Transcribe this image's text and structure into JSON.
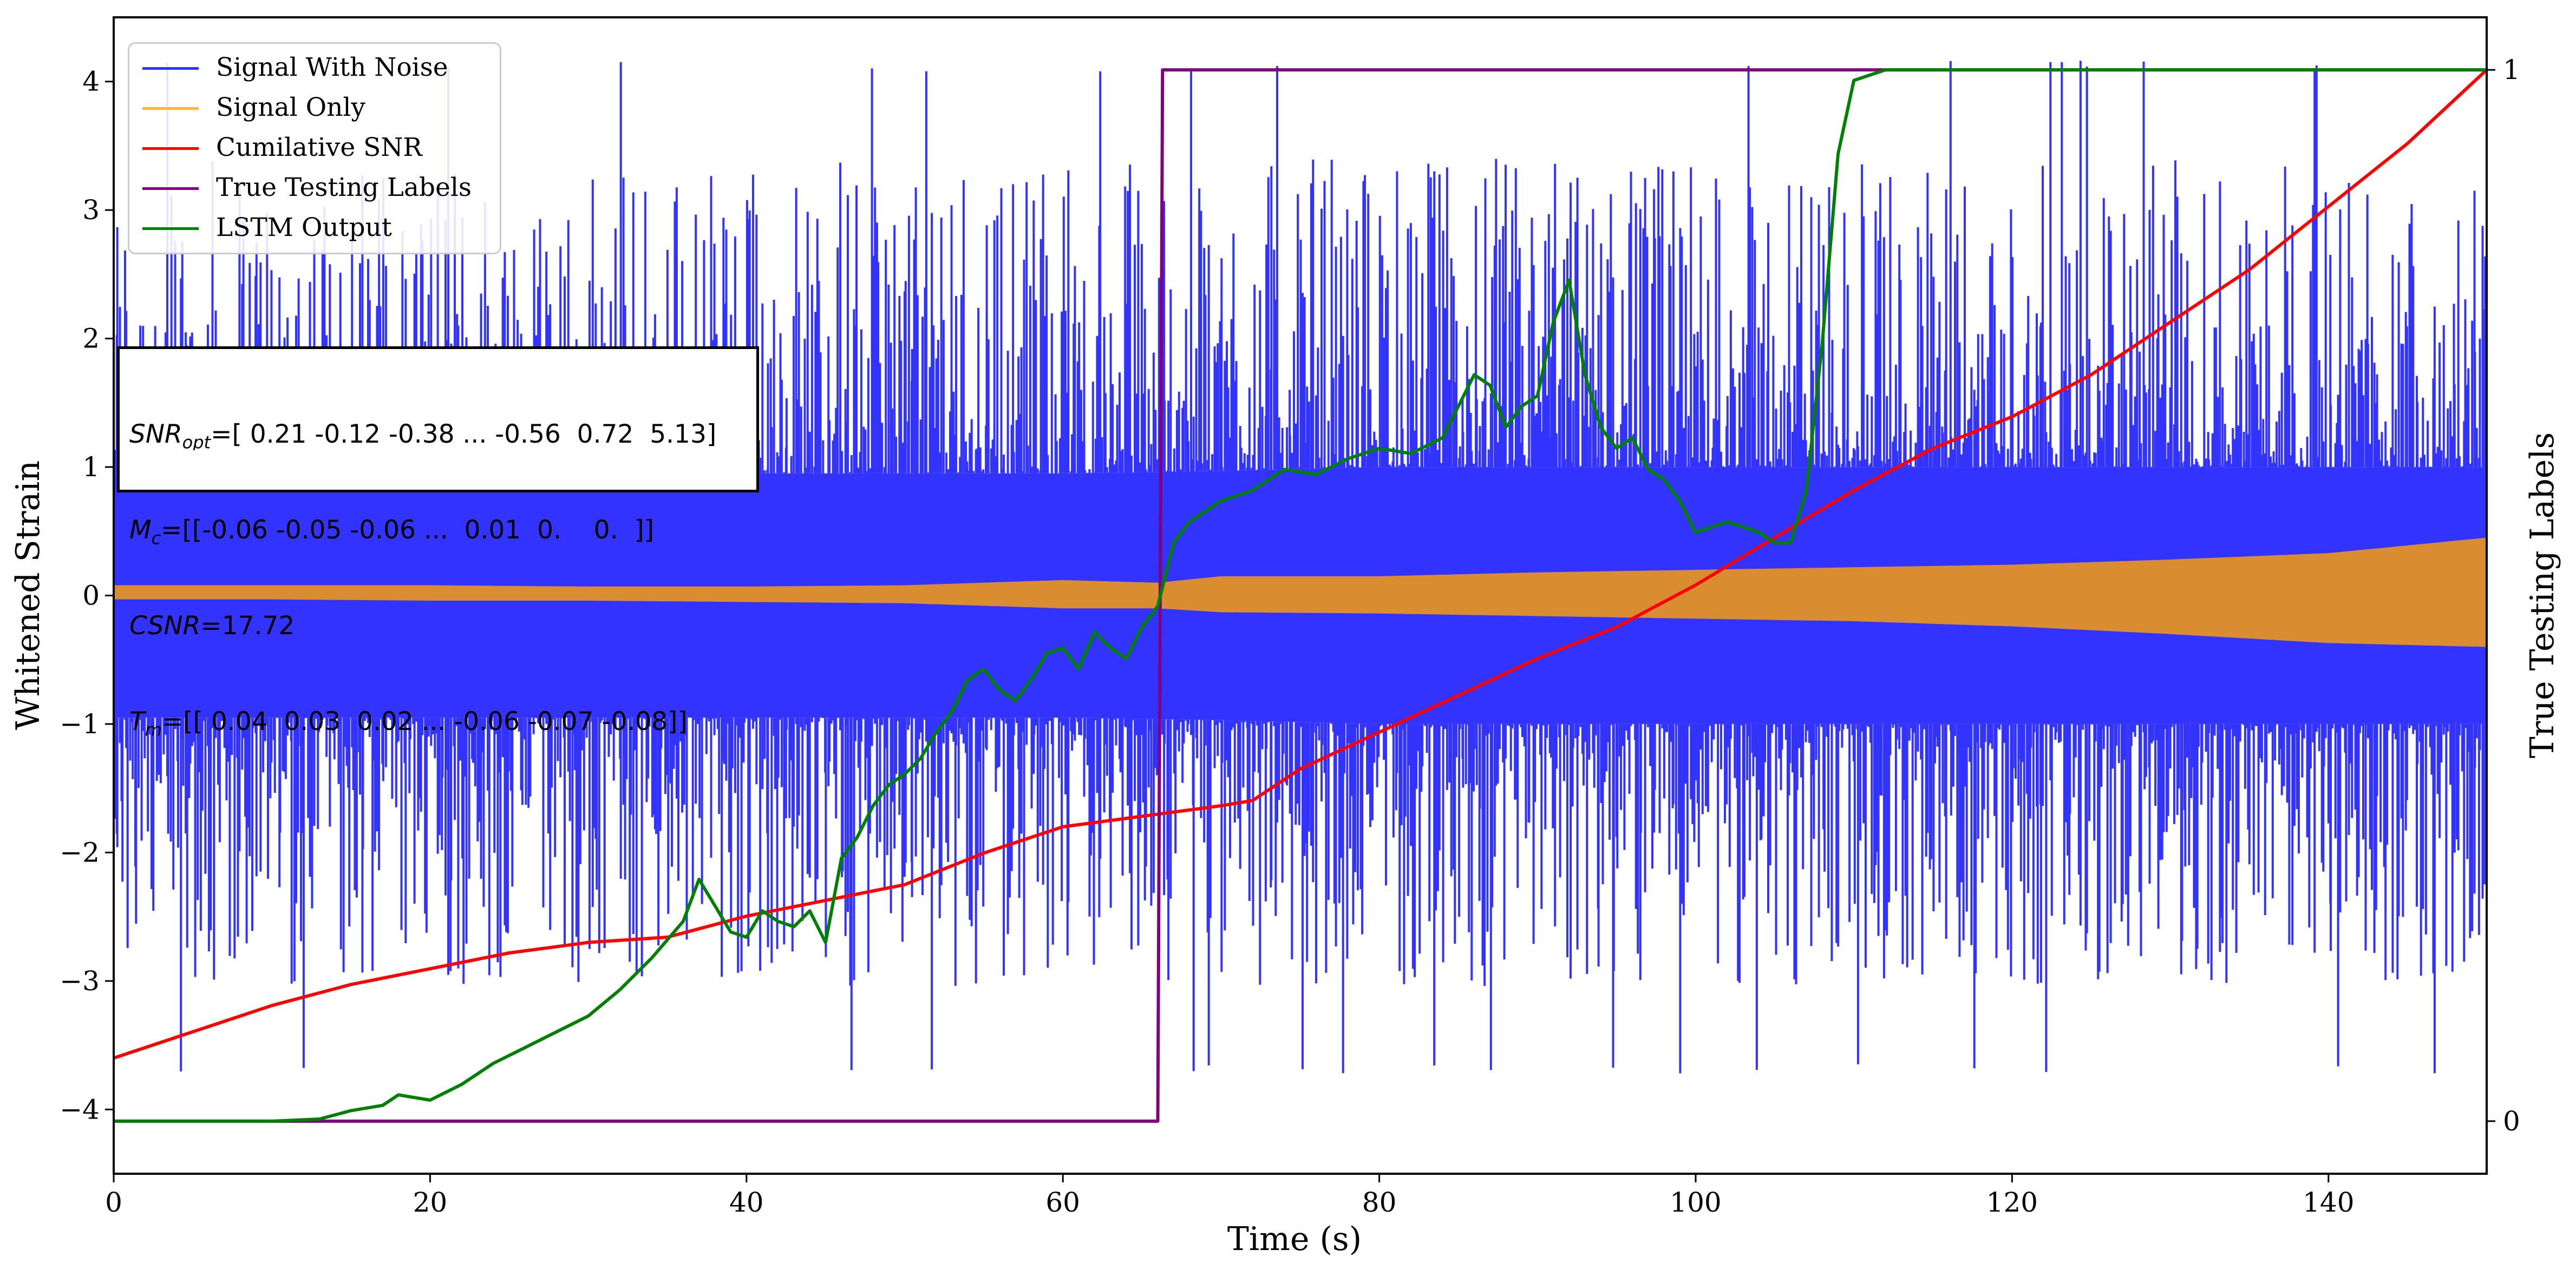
{
  "chart_data": {
    "type": "line",
    "xlabel": "Time (s)",
    "ylabel": "Whitened Strain",
    "y2label": "True Testing Labels",
    "xlim": [
      0,
      150
    ],
    "ylim": [
      -4.5,
      4.5
    ],
    "y2lim": [
      -0.05,
      1.05
    ],
    "xticks": [
      "0",
      "20",
      "40",
      "60",
      "80",
      "100",
      "120",
      "140"
    ],
    "yticks": [
      "4",
      "3",
      "2",
      "1",
      "0",
      "−1",
      "−2",
      "−3",
      "−4"
    ],
    "y2ticks": [
      "1",
      "0"
    ],
    "legend_position": "top-left",
    "colors": {
      "signal_with_noise": "#3333ff",
      "signal_only": "#d98c30",
      "cumulative_snr": "#ff0000",
      "true_labels": "#800080",
      "lstm_output": "#008000"
    },
    "series": [
      {
        "name": "Signal With Noise",
        "type": "noise_band",
        "envelope_x": [
          0,
          10,
          20,
          30,
          40,
          50,
          60,
          70,
          80,
          90,
          100,
          110,
          120,
          130,
          140,
          150
        ],
        "upper": [
          0.95,
          0.95,
          0.95,
          0.95,
          0.95,
          0.95,
          0.95,
          0.97,
          1.0,
          1.0,
          1.0,
          1.0,
          1.0,
          1.0,
          1.0,
          1.0
        ],
        "lower": [
          -0.95,
          -0.95,
          -0.95,
          -0.95,
          -0.95,
          -0.95,
          -0.95,
          -0.97,
          -1.0,
          -1.0,
          -1.0,
          -1.0,
          -1.0,
          -1.0,
          -1.0,
          -1.0
        ],
        "spike_max": 4.18,
        "spike_min": -3.72
      },
      {
        "name": "Signal Only",
        "type": "signal_band",
        "x": [
          0,
          10,
          20,
          30,
          40,
          50,
          60,
          66,
          70,
          80,
          90,
          100,
          110,
          120,
          130,
          140,
          150
        ],
        "upper": [
          0.08,
          0.08,
          0.08,
          0.07,
          0.07,
          0.08,
          0.12,
          0.1,
          0.15,
          0.15,
          0.18,
          0.2,
          0.22,
          0.24,
          0.28,
          0.33,
          0.45
        ],
        "lower": [
          -0.03,
          -0.03,
          -0.04,
          -0.04,
          -0.05,
          -0.06,
          -0.1,
          -0.1,
          -0.13,
          -0.14,
          -0.16,
          -0.18,
          -0.2,
          -0.24,
          -0.3,
          -0.37,
          -0.4
        ]
      },
      {
        "name": "Cumilative SNR",
        "axis": "y2",
        "x": [
          0,
          5,
          10,
          15,
          20,
          25,
          30,
          35,
          40,
          45,
          50,
          55,
          60,
          65,
          70,
          72,
          75,
          80,
          85,
          90,
          95,
          100,
          105,
          110,
          115,
          120,
          125,
          130,
          135,
          140,
          145,
          150
        ],
        "y": [
          0.06,
          0.085,
          0.11,
          0.13,
          0.145,
          0.16,
          0.17,
          0.175,
          0.195,
          0.21,
          0.225,
          0.255,
          0.28,
          0.29,
          0.3,
          0.305,
          0.335,
          0.37,
          0.405,
          0.44,
          0.47,
          0.51,
          0.555,
          0.6,
          0.64,
          0.67,
          0.71,
          0.76,
          0.81,
          0.87,
          0.93,
          1.0
        ]
      },
      {
        "name": "True Testing Labels",
        "axis": "y2",
        "x": [
          0,
          66,
          66.3,
          150
        ],
        "y": [
          0,
          0,
          1,
          1
        ]
      },
      {
        "name": "LSTM Output",
        "axis": "y2",
        "x": [
          0,
          10,
          13,
          15,
          17,
          18,
          20,
          22,
          24,
          26,
          28,
          30,
          32,
          34,
          36,
          37,
          38,
          39,
          40,
          41,
          42,
          43,
          44,
          45,
          46,
          47,
          48,
          49,
          50,
          51,
          52,
          53,
          54,
          55,
          56,
          57,
          58,
          59,
          60,
          61,
          62,
          63,
          64,
          65,
          66,
          67,
          68,
          69,
          70,
          72,
          74,
          76,
          78,
          80,
          82,
          84,
          86,
          87,
          88,
          89,
          90,
          91,
          92,
          93,
          94,
          95,
          96,
          97,
          98,
          99,
          100,
          102,
          104,
          105,
          106,
          107,
          108,
          109,
          110,
          111,
          112,
          115,
          120,
          150
        ],
        "y": [
          0,
          0,
          0.002,
          0.01,
          0.015,
          0.025,
          0.02,
          0.035,
          0.055,
          0.07,
          0.085,
          0.1,
          0.125,
          0.155,
          0.19,
          0.23,
          0.205,
          0.18,
          0.175,
          0.2,
          0.19,
          0.185,
          0.2,
          0.17,
          0.25,
          0.27,
          0.3,
          0.32,
          0.33,
          0.345,
          0.37,
          0.39,
          0.42,
          0.43,
          0.41,
          0.4,
          0.42,
          0.445,
          0.45,
          0.43,
          0.465,
          0.45,
          0.44,
          0.47,
          0.49,
          0.55,
          0.57,
          0.58,
          0.59,
          0.6,
          0.62,
          0.615,
          0.63,
          0.64,
          0.635,
          0.65,
          0.71,
          0.7,
          0.66,
          0.68,
          0.69,
          0.76,
          0.8,
          0.71,
          0.66,
          0.64,
          0.65,
          0.62,
          0.61,
          0.59,
          0.56,
          0.57,
          0.56,
          0.55,
          0.55,
          0.6,
          0.74,
          0.92,
          0.99,
          0.995,
          1.0,
          1.0,
          1.0,
          1.0
        ]
      }
    ],
    "annotation_lines": [
      "=[ 0.21 -0.12 -0.38 ... -0.56  0.72  5.13]",
      "=[[-0.06 -0.05 -0.06 ...  0.01  0.    0.  ]]",
      "=17.72",
      "=[[ 0.04  0.03  0.02 ... -0.06 -0.07 -0.08]]"
    ]
  }
}
